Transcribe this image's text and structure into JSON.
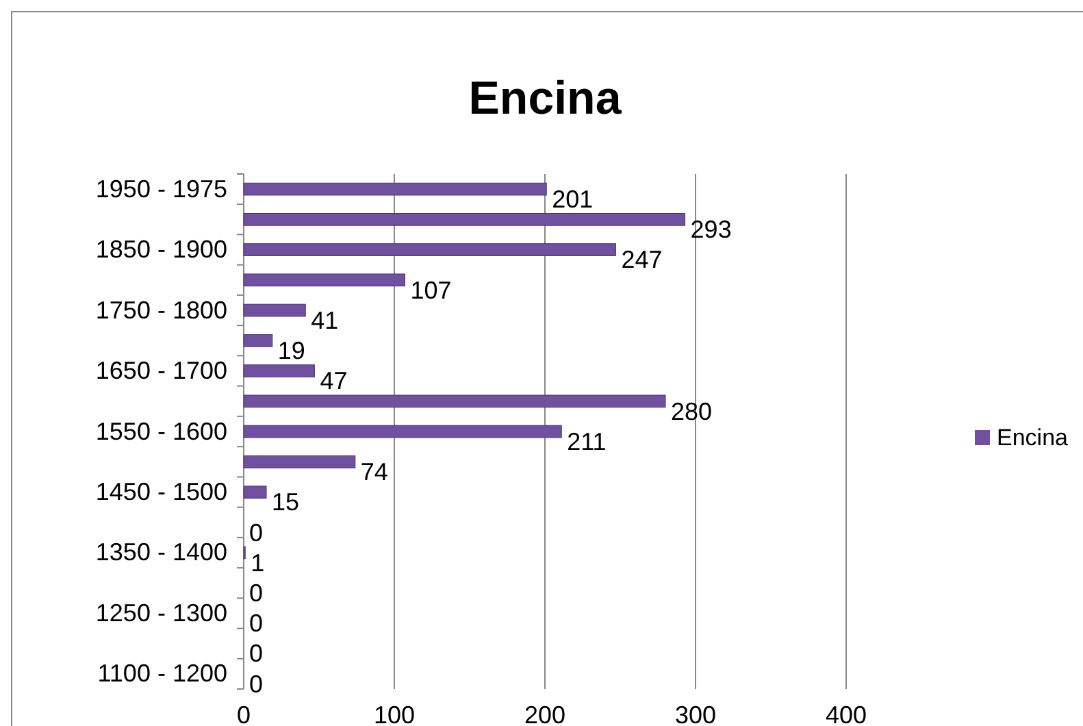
{
  "chart_data": {
    "type": "bar",
    "title": "Encina",
    "orientation": "horizontal",
    "categories": [
      "1950 - 1975",
      null,
      "1850 - 1900",
      null,
      "1750 - 1800",
      null,
      "1650 - 1700",
      null,
      "1550 - 1600",
      null,
      "1450 - 1500",
      null,
      "1350 - 1400",
      null,
      "1250 - 1300",
      null,
      "1100 - 1200"
    ],
    "series": [
      {
        "name": "Encina",
        "color": "#7051a0",
        "values": [
          201,
          293,
          247,
          107,
          41,
          19,
          47,
          280,
          211,
          74,
          15,
          0,
          1,
          0,
          0,
          0,
          0
        ]
      }
    ],
    "xlim": [
      0,
      400
    ],
    "xticks": [
      0,
      100,
      200,
      300,
      400
    ],
    "grid": "x",
    "legend": "right",
    "data_labels": true
  }
}
